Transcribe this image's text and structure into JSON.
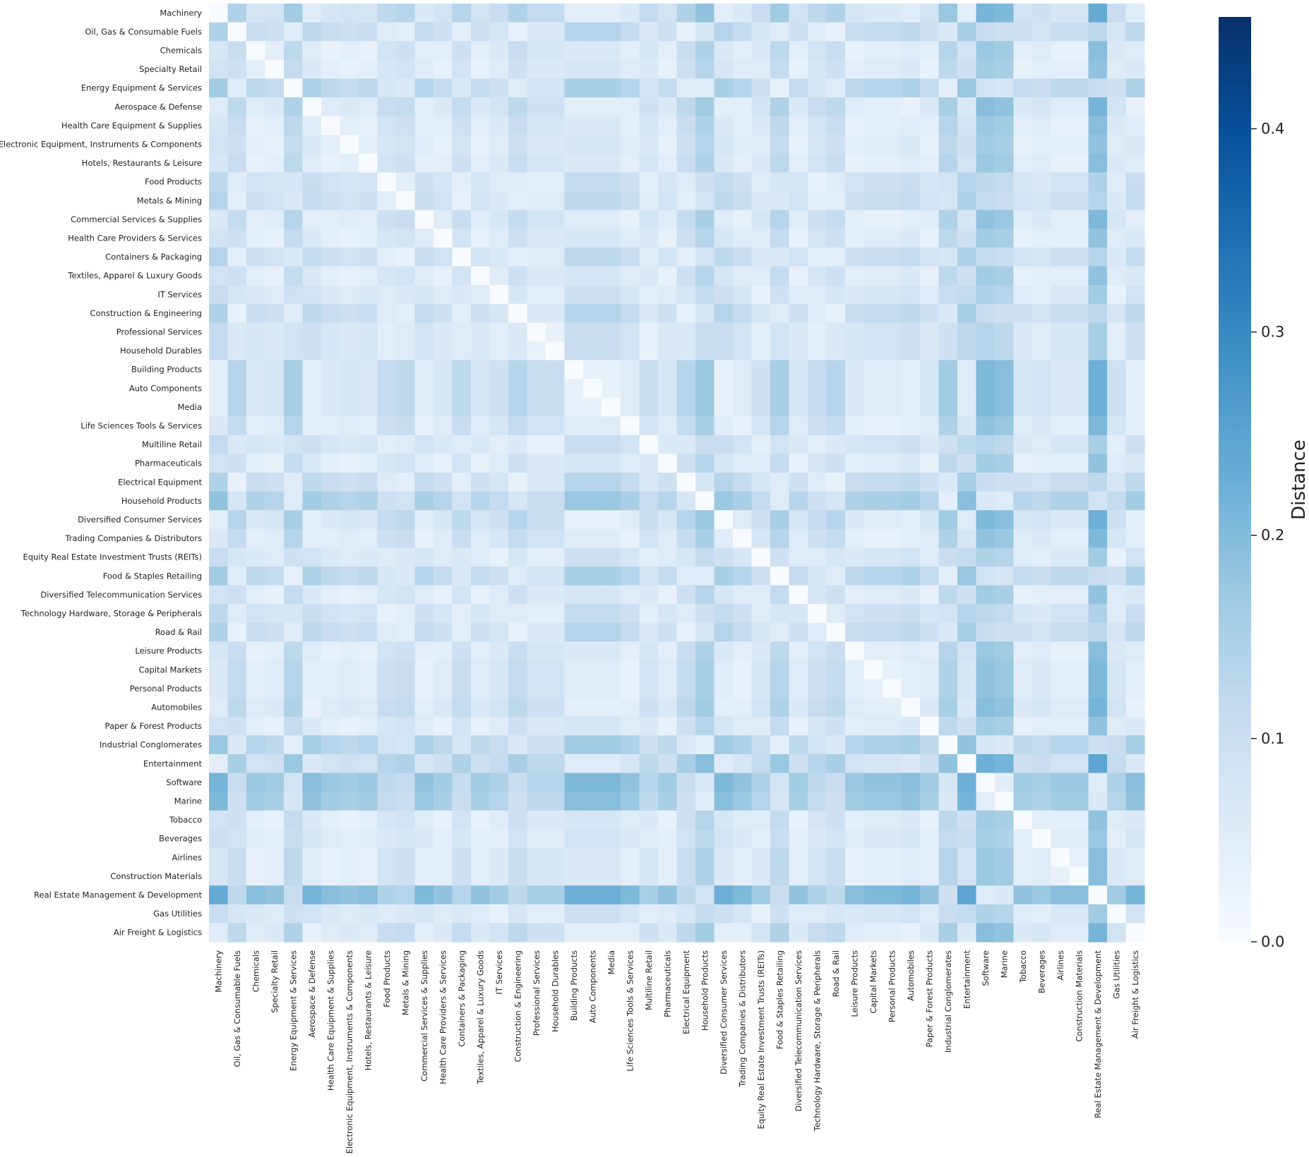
{
  "chart_data": {
    "type": "heatmap",
    "title": "",
    "xlabel": "",
    "ylabel": "",
    "colorscale": "Blues",
    "colorbar": {
      "label": "Distance",
      "range": [
        0.0,
        0.455
      ],
      "ticks": [
        0.0,
        0.1,
        0.2,
        0.3,
        0.4
      ],
      "tick_labels": [
        "0.0",
        "0.1",
        "0.2",
        "0.3",
        "0.4"
      ]
    },
    "labels": [
      "Machinery",
      "Oil, Gas & Consumable Fuels",
      "Chemicals",
      "Specialty Retail",
      "Energy Equipment & Services",
      "Aerospace & Defense",
      "Health Care Equipment & Supplies",
      "Electronic Equipment, Instruments & Components",
      "Hotels, Restaurants & Leisure",
      "Food Products",
      "Metals & Mining",
      "Commercial Services & Supplies",
      "Health Care Providers & Services",
      "Containers & Packaging",
      "Textiles, Apparel & Luxury Goods",
      "IT Services",
      "Construction & Engineering",
      "Professional Services",
      "Household Durables",
      "Building Products",
      "Auto Components",
      "Media",
      "Life Sciences Tools & Services",
      "Multiline Retail",
      "Pharmaceuticals",
      "Electrical Equipment",
      "Household Products",
      "Diversified Consumer Services",
      "Trading Companies & Distributors",
      "Equity Real Estate Investment Trusts (REITs)",
      "Food & Staples Retailing",
      "Diversified Telecommunication Services",
      "Technology Hardware, Storage & Peripherals",
      "Road & Rail",
      "Leisure Products",
      "Capital Markets",
      "Personal Products",
      "Automobiles",
      "Paper & Forest Products",
      "Industrial Conglomerates",
      "Entertainment",
      "Software",
      "Marine",
      "Tobacco",
      "Beverages",
      "Airlines",
      "Construction Materials",
      "Real Estate Management & Development",
      "Gas Utilities",
      "Air Freight & Logistics"
    ],
    "base": [
      0.06,
      0.17,
      0.1,
      0.11,
      0.19,
      0.08,
      0.1,
      0.11,
      0.1,
      0.15,
      0.16,
      0.09,
      0.11,
      0.16,
      0.11,
      0.13,
      0.17,
      0.14,
      0.14,
      0.07,
      0.07,
      0.07,
      0.09,
      0.14,
      0.11,
      0.17,
      0.21,
      0.07,
      0.09,
      0.13,
      0.19,
      0.11,
      0.15,
      0.17,
      0.1,
      0.09,
      0.09,
      0.08,
      0.11,
      0.2,
      0.05,
      0.24,
      0.23,
      0.11,
      0.12,
      0.1,
      0.1,
      0.26,
      0.13,
      0.08
    ],
    "values": null,
    "note_values": "values[i][j] = |base[i] - base[j]| + 0.035, diagonal = 0"
  }
}
